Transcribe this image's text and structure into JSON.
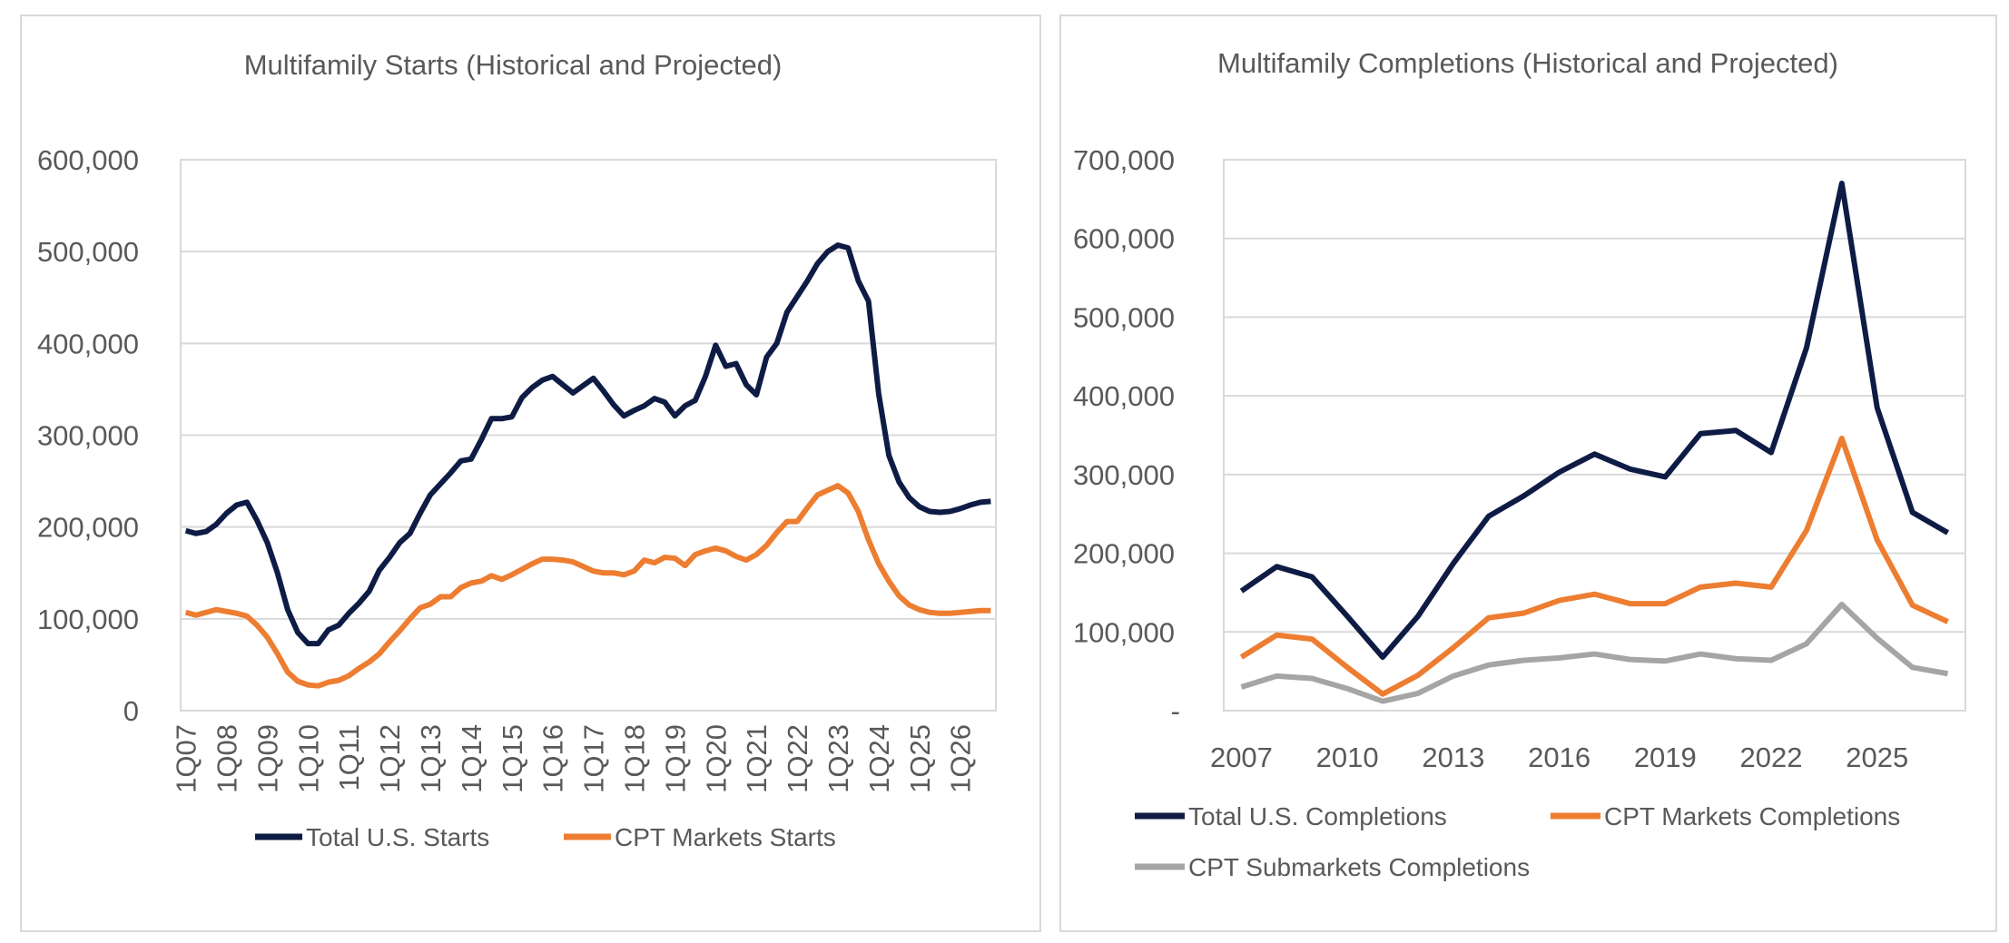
{
  "chart_data": [
    {
      "type": "line",
      "title": "Multifamily Starts (Historical and Projected)",
      "xlabel": "",
      "ylabel": "",
      "ylim": [
        0,
        600000
      ],
      "yticks": [
        "0",
        "100,000",
        "200,000",
        "300,000",
        "400,000",
        "500,000",
        "600,000"
      ],
      "ytick_values": [
        0,
        100000,
        200000,
        300000,
        400000,
        500000,
        600000
      ],
      "xticks": [
        "1Q07",
        "1Q08",
        "1Q09",
        "1Q10",
        "1Q11",
        "1Q12",
        "1Q13",
        "1Q14",
        "1Q15",
        "1Q16",
        "1Q17",
        "1Q18",
        "1Q19",
        "1Q20",
        "1Q21",
        "1Q22",
        "1Q23",
        "1Q24",
        "1Q25",
        "1Q26"
      ],
      "x_note_quarters": "1Q07-4Q26",
      "grid": true,
      "legend": "bottom",
      "series": [
        {
          "name": "Total U.S. Starts",
          "color": "#0e1c45",
          "values": [
            196000,
            193000,
            195000,
            203000,
            215000,
            224000,
            227000,
            207000,
            183000,
            150000,
            110000,
            85000,
            73000,
            73000,
            88000,
            93000,
            106000,
            117000,
            130000,
            153000,
            167000,
            183000,
            193000,
            215000,
            235000,
            247000,
            259000,
            272000,
            274000,
            295000,
            318000,
            318000,
            320000,
            341000,
            352000,
            360000,
            364000,
            355000,
            346000,
            354000,
            362000,
            348000,
            333000,
            321000,
            327000,
            332000,
            340000,
            336000,
            321000,
            332000,
            338000,
            364000,
            398000,
            375000,
            378000,
            355000,
            344000,
            385000,
            400000,
            434000,
            451000,
            468000,
            487000,
            500000,
            507000,
            504000,
            468000,
            446000,
            345000,
            278000,
            249000,
            232000,
            222000,
            217000,
            216000,
            217000,
            220000,
            224000,
            227000,
            228000
          ]
        },
        {
          "name": "CPT Markets Starts",
          "color": "#ed7d31",
          "values": [
            107000,
            104000,
            107000,
            110000,
            108000,
            106000,
            103000,
            93000,
            80000,
            62000,
            42000,
            32000,
            28000,
            27000,
            31000,
            33000,
            38000,
            46000,
            53000,
            62000,
            75000,
            87000,
            100000,
            112000,
            116000,
            124000,
            124000,
            134000,
            139000,
            141000,
            147000,
            143000,
            148000,
            154000,
            160000,
            165000,
            165000,
            164000,
            162000,
            157000,
            152000,
            150000,
            150000,
            148000,
            152000,
            164000,
            161000,
            167000,
            166000,
            158000,
            170000,
            174000,
            177000,
            174000,
            168000,
            164000,
            170000,
            180000,
            194000,
            206000,
            206000,
            221000,
            235000,
            240000,
            245000,
            237000,
            217000,
            186000,
            160000,
            141000,
            125000,
            115000,
            110000,
            107000,
            106000,
            106000,
            107000,
            108000,
            109000,
            109000
          ]
        }
      ]
    },
    {
      "type": "line",
      "title": "Multifamily Completions (Historical and Projected)",
      "xlabel": "",
      "ylabel": "",
      "ylim": [
        0,
        700000
      ],
      "yticks": [
        "-",
        "100,000",
        "200,000",
        "300,000",
        "400,000",
        "500,000",
        "600,000",
        "700,000"
      ],
      "ytick_values": [
        0,
        100000,
        200000,
        300000,
        400000,
        500000,
        600000,
        700000
      ],
      "x": [
        2007,
        2008,
        2009,
        2010,
        2011,
        2012,
        2013,
        2014,
        2015,
        2016,
        2017,
        2018,
        2019,
        2020,
        2021,
        2022,
        2023,
        2024,
        2025,
        2026,
        2027
      ],
      "xticks": [
        "2007",
        "2010",
        "2013",
        "2016",
        "2019",
        "2022",
        "2025"
      ],
      "xtick_values": [
        2007,
        2010,
        2013,
        2016,
        2019,
        2022,
        2025
      ],
      "grid": true,
      "legend": "bottom",
      "series": [
        {
          "name": "Total U.S. Completions",
          "color": "#0e1c45",
          "values": [
            152000,
            183000,
            170000,
            120000,
            68000,
            120000,
            187000,
            247000,
            273000,
            303000,
            326000,
            307000,
            297000,
            352000,
            356000,
            328000,
            461000,
            670000,
            385000,
            252000,
            226000
          ]
        },
        {
          "name": "CPT Markets Completions",
          "color": "#ed7d31",
          "values": [
            68000,
            96000,
            91000,
            55000,
            21000,
            45000,
            80000,
            118000,
            124000,
            140000,
            148000,
            136000,
            136000,
            157000,
            162000,
            157000,
            229000,
            346000,
            217000,
            134000,
            113000
          ]
        },
        {
          "name": "CPT Submarkets Completions",
          "color": "#a5a5a5",
          "values": [
            30000,
            44000,
            41000,
            28000,
            12000,
            22000,
            44000,
            58000,
            64000,
            67000,
            72000,
            65000,
            63000,
            72000,
            66000,
            64000,
            85000,
            135000,
            92000,
            55000,
            47000
          ]
        }
      ]
    }
  ]
}
